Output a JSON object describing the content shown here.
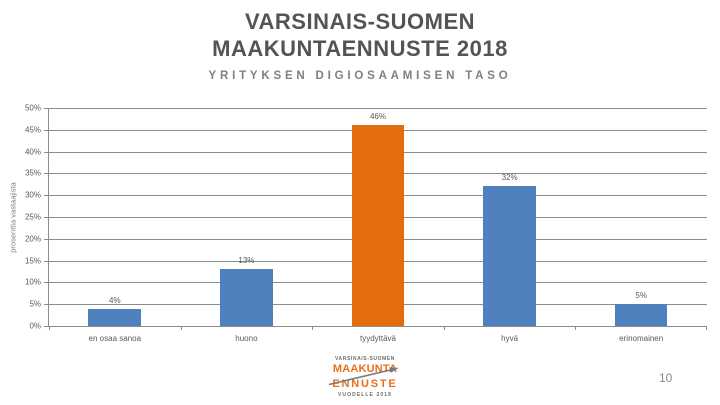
{
  "slide": {
    "title_line1": "VARSINAIS-SUOMEN",
    "title_line2": "MAAKUNTAENNUSTE 2018",
    "subtitle": "YRITYKSEN DIGIOSAAMISEN TASO",
    "page_number": "10"
  },
  "chart_data": {
    "type": "bar",
    "title": "YRITYKSEN DIGIOSAAMISEN TASO",
    "categories": [
      "en osaa sanoa",
      "huono",
      "tyydyttävä",
      "hyvä",
      "erinomainen"
    ],
    "values": [
      4,
      13,
      46,
      32,
      5
    ],
    "value_labels": [
      "4%",
      "13%",
      "46%",
      "32%",
      "5%"
    ],
    "xlabel": "",
    "ylabel": "prosenttia vastaajista",
    "ylim": [
      0,
      50
    ],
    "ytick_step": 5,
    "ytick_labels": [
      "0%",
      "5%",
      "10%",
      "15%",
      "20%",
      "25%",
      "30%",
      "35%",
      "40%",
      "45%",
      "50%"
    ],
    "grid": true,
    "legend": false,
    "bar_colors": [
      "#4e81bd",
      "#4e81bd",
      "#e36d0d",
      "#4e81bd",
      "#4e81bd"
    ],
    "highlight_category": "tyydyttävä"
  },
  "logo": {
    "top_text": "VARSINAIS-SUOMEN",
    "maakunta": "MAAKUNTA",
    "ennuste": "ENNUSTE",
    "bottom_text": "VUODELLE 2018"
  },
  "colors": {
    "bar_blue": "#4e81bd",
    "bar_orange": "#e36d0d",
    "title_gray": "#545454",
    "subtitle_gray": "#7f7f7f",
    "grid_gray": "#8c8c8c",
    "label_gray": "#595959",
    "logo_orange": "#e8701a"
  }
}
